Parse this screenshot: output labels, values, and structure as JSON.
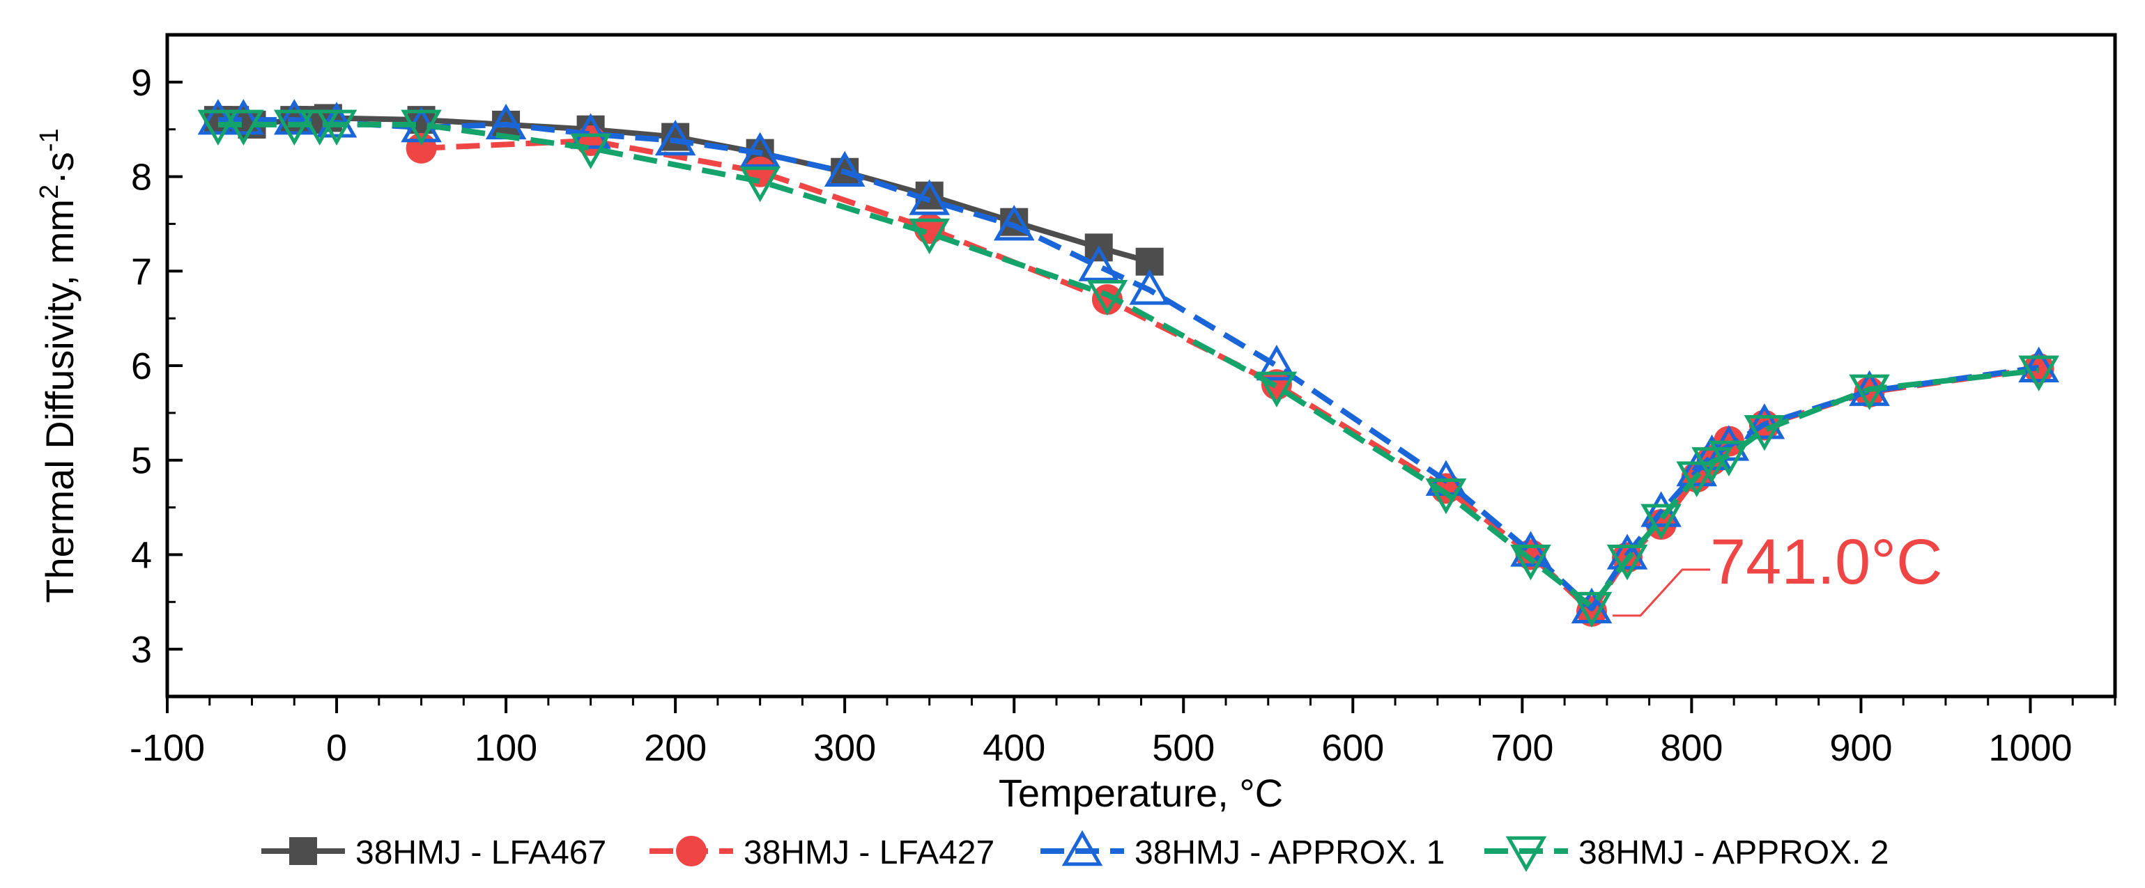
{
  "chart_data": {
    "type": "line",
    "title": "",
    "xlabel": "Temperature, °C",
    "ylabel": {
      "main": "Thermal Diffusivity, mm",
      "sup1": "2",
      "mid": "·s",
      "sup2": "-1"
    },
    "xlim": [
      -100,
      1050
    ],
    "ylim": [
      2.5,
      9.5
    ],
    "xticks": [
      -100,
      0,
      100,
      200,
      300,
      400,
      500,
      600,
      700,
      800,
      900,
      1000
    ],
    "yticks": [
      3,
      4,
      5,
      6,
      7,
      8,
      9
    ],
    "grid": false,
    "legend_position": "bottom",
    "annotation": {
      "text": "741.0°C",
      "x": 741,
      "y": 3.4,
      "color": "#f04545"
    },
    "series": [
      {
        "name": "38HMJ - LFA467",
        "color": "#4d4d4d",
        "marker": "square",
        "dash": "solid",
        "x": [
          -70,
          -60,
          -50,
          -25,
          -15,
          -5,
          50,
          100,
          150,
          200,
          250,
          300,
          350,
          400,
          450,
          480
        ],
        "y": [
          8.6,
          8.6,
          8.55,
          8.6,
          8.6,
          8.62,
          8.6,
          8.55,
          8.5,
          8.42,
          8.25,
          8.05,
          7.8,
          7.52,
          7.25,
          7.1
        ]
      },
      {
        "name": "38HMJ - LFA427",
        "color": "#f04545",
        "marker": "circle",
        "dash": "dashed",
        "x": [
          50,
          150,
          250,
          350,
          455,
          555,
          655,
          705,
          741,
          762,
          782,
          803,
          812,
          822,
          843,
          905,
          1005
        ],
        "y": [
          8.3,
          8.38,
          8.05,
          7.45,
          6.7,
          5.8,
          4.7,
          4.0,
          3.4,
          3.97,
          4.32,
          4.82,
          5.0,
          5.2,
          5.37,
          5.72,
          5.97
        ]
      },
      {
        "name": "38HMJ - APPROX. 1",
        "color": "#1a66d9",
        "marker": "triangle-up",
        "dash": "dashed",
        "x": [
          -70,
          -55,
          -25,
          0,
          50,
          100,
          150,
          200,
          250,
          300,
          350,
          400,
          450,
          480,
          555,
          655,
          705,
          741,
          762,
          782,
          803,
          812,
          822,
          843,
          905,
          1005
        ],
        "y": [
          8.6,
          8.6,
          8.6,
          8.57,
          8.52,
          8.55,
          8.45,
          8.38,
          8.25,
          8.05,
          7.75,
          7.48,
          7.05,
          6.8,
          6.0,
          4.78,
          4.03,
          3.43,
          4.0,
          4.45,
          4.88,
          5.05,
          5.15,
          5.38,
          5.73,
          5.98
        ]
      },
      {
        "name": "38HMJ - APPROX. 2",
        "color": "#14a36a",
        "marker": "triangle-down",
        "dash": "dashed",
        "x": [
          -70,
          -55,
          -25,
          -10,
          0,
          50,
          150,
          250,
          350,
          455,
          555,
          655,
          705,
          741,
          762,
          782,
          803,
          812,
          822,
          843,
          905,
          1005
        ],
        "y": [
          8.55,
          8.55,
          8.55,
          8.55,
          8.55,
          8.55,
          8.3,
          7.95,
          7.4,
          6.75,
          5.78,
          4.65,
          3.95,
          3.45,
          3.95,
          4.38,
          4.83,
          4.98,
          5.05,
          5.32,
          5.75,
          5.95
        ]
      }
    ]
  }
}
